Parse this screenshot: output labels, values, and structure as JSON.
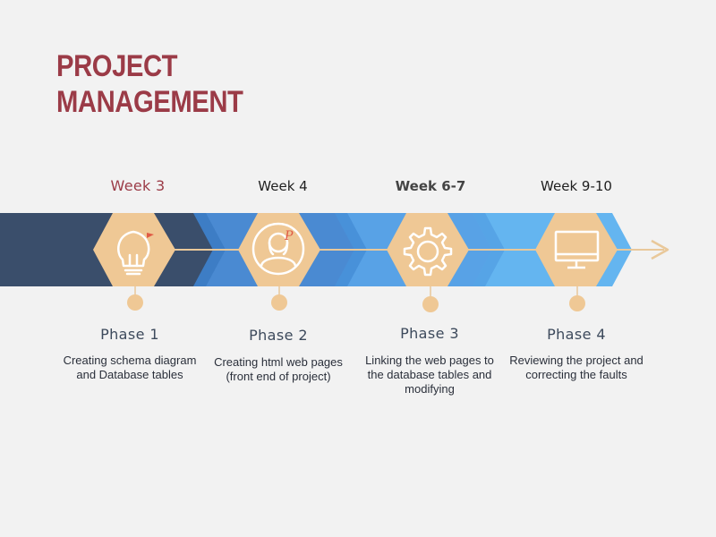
{
  "title": {
    "line1": "PROJECT",
    "line2": "MANAGEMENT"
  },
  "colors": {
    "title": "#9b3b47",
    "band_dark": "#3a4e6b",
    "band_mid": "#4a88cc",
    "band_light": "#5aaae8",
    "hexagon": "#efc895",
    "arrow": "#e9c89a",
    "text": "#2a2f3a"
  },
  "milestones": [
    {
      "week": "Week 3",
      "phase": "Phase 1",
      "description": "Creating schema diagram and Database tables",
      "icon": "lightbulb-icon"
    },
    {
      "week": "Week 4",
      "phase": "Phase 2",
      "description": "Creating html web pages (front end of project)",
      "icon": "person-icon"
    },
    {
      "week": "Week 6-7",
      "phase": "Phase 3",
      "description": "Linking the web pages to the database tables and modifying",
      "icon": "gear-icon"
    },
    {
      "week": "Week 9-10",
      "phase": "Phase 4",
      "description": "Reviewing the project and correcting the faults",
      "icon": "monitor-icon"
    }
  ]
}
